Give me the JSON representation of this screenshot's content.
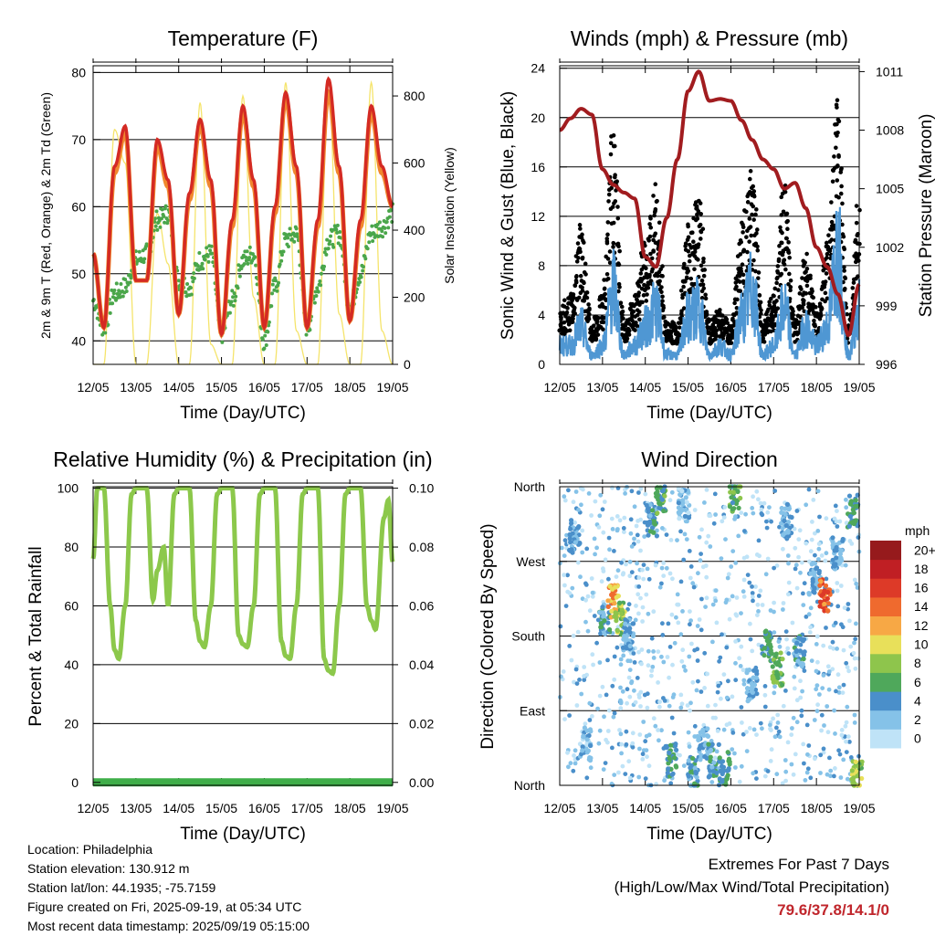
{
  "time_ticks": [
    "12/05",
    "13/05",
    "14/05",
    "15/05",
    "16/05",
    "17/05",
    "18/05",
    "19/05"
  ],
  "chart_data": [
    {
      "type": "line",
      "title": "Temperature (F)",
      "xlabel": "Time (Day/UTC)",
      "ylabel": "2m & 9m T (Red, Orange) & 2m Td (Green)",
      "ylabel_right": "Solar Insolation (Yellow)",
      "ylim": [
        36.5,
        81
      ],
      "yticks": [
        40,
        50,
        60,
        70,
        80
      ],
      "ylim_right": [
        0,
        890
      ],
      "yticks_right": [
        0,
        200,
        400,
        600,
        800
      ],
      "colors": {
        "t2": "#d42a23",
        "t9": "#f0882e",
        "td": "#4aa64a",
        "solar": "#f5e46b"
      },
      "days": [
        0,
        0.25,
        0.5,
        0.75,
        1,
        1.25,
        1.5,
        1.75,
        2,
        2.25,
        2.5,
        2.75,
        3,
        3.25,
        3.5,
        3.75,
        4,
        4.25,
        4.5,
        4.75,
        5,
        5.25,
        5.5,
        5.75,
        6,
        6.25,
        6.5,
        6.75,
        7
      ],
      "series": [
        {
          "key": "t2",
          "values": [
            53,
            42,
            66,
            72,
            49,
            49,
            70,
            64,
            44,
            62,
            73,
            64,
            41,
            58,
            75,
            64,
            42,
            60,
            77,
            66,
            42,
            58,
            79,
            66,
            43,
            58,
            75,
            66,
            60
          ]
        },
        {
          "key": "t9",
          "values": [
            53,
            42,
            65,
            71,
            49,
            49,
            69,
            63,
            44,
            61,
            72,
            63,
            41,
            57,
            74,
            63,
            42,
            59,
            76,
            65,
            42,
            57,
            77,
            65,
            43,
            57,
            74,
            65,
            60
          ]
        },
        {
          "key": "td",
          "values": [
            46,
            42,
            47,
            48,
            52,
            53,
            58,
            59,
            49,
            48,
            52,
            53,
            41,
            46,
            52,
            53,
            40,
            48,
            55,
            56,
            42,
            48,
            55,
            56,
            45,
            50,
            56,
            57,
            59
          ]
        },
        {
          "key": "solar",
          "values": [
            0,
            0,
            700,
            600,
            0,
            0,
            450,
            300,
            0,
            0,
            780,
            60,
            0,
            0,
            800,
            200,
            0,
            0,
            840,
            100,
            0,
            0,
            850,
            150,
            0,
            0,
            840,
            100,
            0
          ]
        }
      ]
    },
    {
      "type": "line",
      "title": "Winds (mph) & Pressure (mb)",
      "xlabel": "Time (Day/UTC)",
      "ylabel": "Sonic Wind & Gust (Blue, Black)",
      "ylabel_right": "Station Pressure (Maroon)",
      "ylim": [
        0,
        24.2
      ],
      "yticks": [
        0,
        4,
        8,
        12,
        16,
        20,
        24
      ],
      "ylim_right": [
        996,
        1011.3
      ],
      "yticks_right": [
        996,
        999,
        1002,
        1005,
        1008,
        1011
      ],
      "colors": {
        "wind": "#4f97d3",
        "gust": "#000000",
        "pressure": "#a11c1f"
      },
      "days": [
        0,
        0.25,
        0.5,
        0.75,
        1,
        1.25,
        1.5,
        1.75,
        2,
        2.25,
        2.5,
        2.75,
        3,
        3.25,
        3.5,
        3.75,
        4,
        4.25,
        4.5,
        4.75,
        5,
        5.25,
        5.5,
        5.75,
        6,
        6.25,
        6.5,
        6.75,
        7
      ],
      "series": [
        {
          "key": "pressure",
          "values": [
            1008,
            1008.6,
            1009.1,
            1008.8,
            1006,
            1005.2,
            1004.8,
            1004.5,
            1001.5,
            1001,
            1003.5,
            1006.5,
            1010,
            1011,
            1009.5,
            1009.6,
            1009.5,
            1008.5,
            1007.5,
            1006.5,
            1006,
            1005,
            1005.3,
            1004,
            1002,
            1001,
            999.6,
            997.5,
            1000.1
          ]
        },
        {
          "key": "wind",
          "values": [
            2,
            2,
            4,
            1,
            2,
            8,
            1,
            2,
            4,
            6,
            1,
            1,
            5,
            6,
            1,
            2,
            1,
            5,
            8,
            1,
            2,
            6,
            1,
            4,
            2,
            4,
            12,
            1,
            6
          ]
        },
        {
          "key": "gust",
          "values": [
            4,
            5,
            10,
            3,
            5,
            17,
            3,
            5,
            9,
            13,
            3,
            3,
            10,
            12,
            3,
            4,
            3,
            10,
            14,
            3,
            5,
            13,
            3,
            8,
            4,
            9,
            19,
            3,
            12
          ]
        }
      ]
    },
    {
      "type": "line",
      "title": "Relative Humidity (%) & Precipitation (in)",
      "xlabel": "Time (Day/UTC)",
      "ylabel": "Percent & Total Rainfall",
      "ylim": [
        -1,
        100.5
      ],
      "yticks": [
        0,
        20,
        40,
        60,
        80,
        100
      ],
      "yticks_right": [
        "0.00",
        "0.02",
        "0.04",
        "0.06",
        "0.08",
        "0.10"
      ],
      "colors": {
        "rh": "#8cc84b",
        "precip": "#3fae49"
      },
      "days": [
        0,
        0.1,
        0.25,
        0.4,
        0.5,
        0.6,
        0.75,
        0.9,
        1,
        1.25,
        1.4,
        1.5,
        1.65,
        1.75,
        1.9,
        2,
        2.25,
        2.4,
        2.5,
        2.6,
        2.75,
        2.9,
        3,
        3.25,
        3.4,
        3.5,
        3.6,
        3.75,
        3.9,
        4,
        4.25,
        4.4,
        4.5,
        4.6,
        4.75,
        4.9,
        5,
        5.25,
        5.4,
        5.5,
        5.6,
        5.75,
        5.9,
        6,
        6.25,
        6.4,
        6.5,
        6.6,
        6.8,
        6.9,
        7
      ],
      "series": [
        {
          "key": "rh",
          "values": [
            76,
            100,
            100,
            60,
            45,
            42,
            60,
            98,
            100,
            100,
            62,
            72,
            80,
            60,
            98,
            100,
            100,
            55,
            48,
            46,
            60,
            98,
            100,
            100,
            50,
            47,
            46,
            60,
            98,
            100,
            100,
            48,
            43,
            42,
            60,
            98,
            100,
            100,
            42,
            38,
            37,
            60,
            98,
            100,
            100,
            60,
            55,
            52,
            90,
            96,
            75
          ]
        },
        {
          "key": "precip",
          "values": [
            0,
            0,
            0,
            0,
            0,
            0,
            0,
            0,
            0,
            0,
            0,
            0,
            0,
            0,
            0,
            0,
            0,
            0,
            0,
            0,
            0,
            0,
            0,
            0,
            0,
            0,
            0,
            0,
            0,
            0,
            0,
            0,
            0,
            0,
            0,
            0,
            0,
            0,
            0,
            0,
            0,
            0,
            0,
            0,
            0,
            0,
            0,
            0,
            0,
            0,
            0
          ]
        }
      ]
    },
    {
      "type": "scatter",
      "title": "Wind Direction",
      "xlabel": "Time (Day/UTC)",
      "ylabel": "Direction (Colored By Speed)",
      "ylim": [
        0,
        360
      ],
      "ytick_labels": [
        "North",
        "East",
        "South",
        "West",
        "North"
      ],
      "yticks": [
        0,
        90,
        180,
        270,
        360
      ],
      "colorbar_title": "mph",
      "colorbar_labels": [
        "0",
        "2",
        "4",
        "6",
        "8",
        "10",
        "12",
        "14",
        "16",
        "18",
        "20+"
      ],
      "colorbar_colors": [
        "#bfe3f7",
        "#85c2e8",
        "#4a8fca",
        "#4fa85b",
        "#8ec54c",
        "#e8e05a",
        "#f7a845",
        "#ef6a2e",
        "#dd3a28",
        "#c01f24",
        "#961a1c"
      ],
      "clusters": [
        {
          "day": 0.35,
          "dir": 300,
          "speed": 3
        },
        {
          "day": 0.6,
          "dir": 50,
          "speed": 2
        },
        {
          "day": 1.05,
          "dir": 200,
          "speed": 4
        },
        {
          "day": 1.25,
          "dir": 222,
          "speed": 12
        },
        {
          "day": 1.4,
          "dir": 200,
          "speed": 8
        },
        {
          "day": 1.6,
          "dir": 180,
          "speed": 3
        },
        {
          "day": 2.15,
          "dir": 320,
          "speed": 4
        },
        {
          "day": 2.35,
          "dir": 345,
          "speed": 6
        },
        {
          "day": 2.6,
          "dir": 30,
          "speed": 5
        },
        {
          "day": 2.9,
          "dir": 340,
          "speed": 2
        },
        {
          "day": 3.1,
          "dir": 15,
          "speed": 4
        },
        {
          "day": 3.35,
          "dir": 50,
          "speed": 3
        },
        {
          "day": 3.6,
          "dir": 30,
          "speed": 4
        },
        {
          "day": 3.85,
          "dir": 20,
          "speed": 5
        },
        {
          "day": 4.1,
          "dir": 350,
          "speed": 6
        },
        {
          "day": 4.5,
          "dir": 120,
          "speed": 3
        },
        {
          "day": 4.85,
          "dir": 170,
          "speed": 5
        },
        {
          "day": 5.1,
          "dir": 140,
          "speed": 7
        },
        {
          "day": 5.3,
          "dir": 320,
          "speed": 3
        },
        {
          "day": 5.6,
          "dir": 160,
          "speed": 4
        },
        {
          "day": 5.95,
          "dir": 250,
          "speed": 3
        },
        {
          "day": 6.2,
          "dir": 230,
          "speed": 14
        },
        {
          "day": 6.5,
          "dir": 280,
          "speed": 3
        },
        {
          "day": 6.85,
          "dir": 330,
          "speed": 5
        },
        {
          "day": 6.95,
          "dir": 10,
          "speed": 8
        }
      ]
    }
  ],
  "info": {
    "location": "Location: Philadelphia",
    "elevation": "Station elevation: 130.912 m",
    "latlon": "Station lat/lon: 44.1935; -75.7159",
    "created": "Figure created on Fri, 2025-09-19, at 05:34 UTC",
    "recent": "Most recent data timestamp: 2025/09/19 05:15:00"
  },
  "extremes": {
    "line1": "Extremes For Past 7 Days",
    "line2": "(High/Low/Max Wind/Total Precipitation)",
    "values": "79.6/37.8/14.1/0"
  }
}
